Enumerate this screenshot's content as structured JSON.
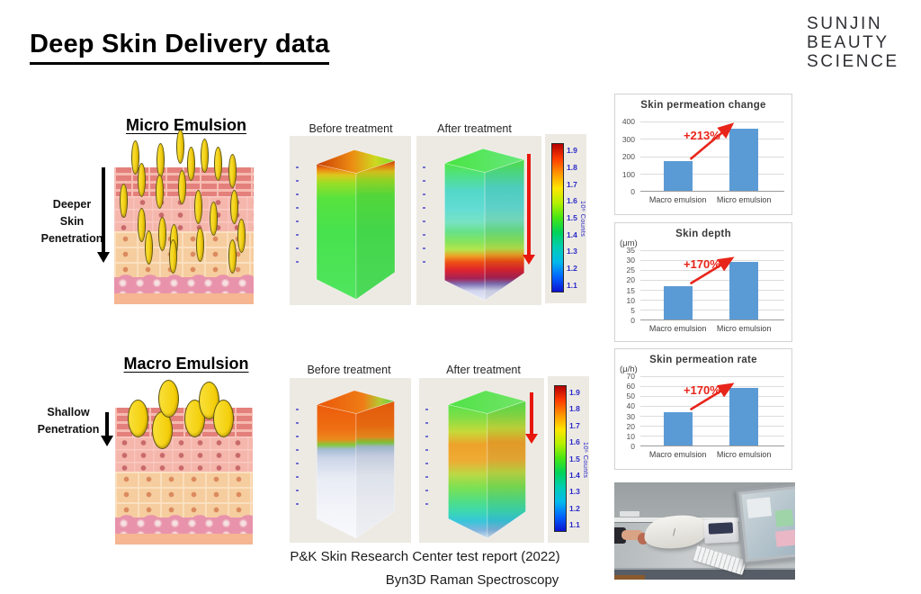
{
  "slide": {
    "title": "Deep Skin Delivery data"
  },
  "logo": {
    "lines": [
      "SUNJIN",
      "BEAUTY",
      "SCIENCE"
    ],
    "color": "#2e2f33"
  },
  "micro": {
    "heading": "Micro Emulsion",
    "side_label": "Deeper\nSkin\nPenetration",
    "before_label": "Before treatment",
    "after_label": "After treatment"
  },
  "macro": {
    "heading": "Macro Emulsion",
    "side_label": "Shallow\nPenetration",
    "before_label": "Before treatment",
    "after_label": "After treatment"
  },
  "colorbar": {
    "unit": "10⁶ Counts",
    "ticks": [
      "1.9",
      "1.8",
      "1.7",
      "1.6",
      "1.5",
      "1.4",
      "1.3",
      "1.2",
      "1.1"
    ],
    "gradient": [
      "#b40000",
      "#ff3c00",
      "#ff9600",
      "#ffe600",
      "#b4f000",
      "#46e614",
      "#00d25a",
      "#00cdb4",
      "#00b9ec",
      "#0064ff",
      "#0c14d2"
    ]
  },
  "captions": {
    "line1": "P&K Skin Research Center test report (2022)",
    "line2": "Byn3D Raman Spectroscopy"
  },
  "accent_red": "#e8251a",
  "chart_data": [
    {
      "type": "bar",
      "title": "Skin permeation change",
      "unit": "",
      "categories": [
        "Macro emulsion",
        "Micro emulsion"
      ],
      "values": [
        170,
        360
      ],
      "annotation": "+213%",
      "ylim": [
        0,
        400
      ],
      "ytick_step": 100,
      "bar_color": "#5b9bd5",
      "annotation_color": "#e8251a",
      "grid": true,
      "legend": "none"
    },
    {
      "type": "bar",
      "title": "Skin depth",
      "unit": "(μm)",
      "categories": [
        "Macro emulsion",
        "Micro emulsion"
      ],
      "values": [
        17,
        29
      ],
      "annotation": "+170%",
      "ylim": [
        0,
        35
      ],
      "ytick_step": 5,
      "bar_color": "#5b9bd5",
      "annotation_color": "#e8251a",
      "grid": true,
      "legend": "none"
    },
    {
      "type": "bar",
      "title": "Skin permeation rate",
      "unit": "(μ/h)",
      "categories": [
        "Macro emulsion",
        "Micro emulsion"
      ],
      "values": [
        34,
        58
      ],
      "annotation": "+170%",
      "ylim": [
        0,
        70
      ],
      "ytick_step": 10,
      "bar_color": "#5b9bd5",
      "annotation_color": "#e8251a",
      "grid": true,
      "legend": "none"
    }
  ]
}
